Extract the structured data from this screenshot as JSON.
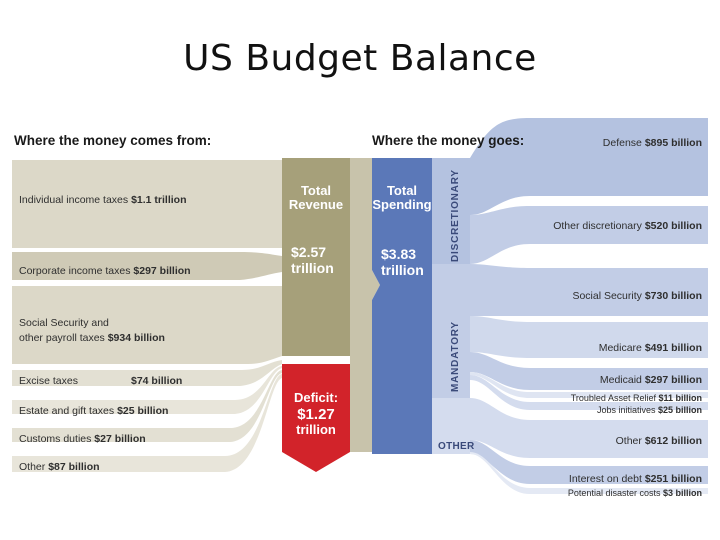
{
  "title": "US Budget Balance",
  "sources": {
    "heading": "Where the money comes from:",
    "items": [
      {
        "name": "Individual income taxes",
        "amount": "$1.1 trillion"
      },
      {
        "name": "Corporate income taxes",
        "amount": "$297 billion"
      },
      {
        "name": "Social Security and",
        "name2": "other payroll taxes",
        "amount": "$934 billion"
      },
      {
        "name": "Excise taxes",
        "amount": "$74 billion"
      },
      {
        "name": "Estate and gift taxes",
        "amount": "$25 billion"
      },
      {
        "name": "Customs duties",
        "amount": "$27 billion"
      },
      {
        "name": "Other",
        "amount": "$87 billion"
      }
    ]
  },
  "revenue": {
    "line1": "Total",
    "line2": "Revenue",
    "value1": "$2.57",
    "value2": "trillion"
  },
  "deficit": {
    "line1": "Deficit:",
    "value1": "$1.27",
    "value2": "trillion"
  },
  "spending": {
    "line1": "Total",
    "line2": "Spending",
    "value1": "$3.83",
    "value2": "trillion"
  },
  "uses": {
    "heading": "Where the money goes:",
    "groups": {
      "discretionary": "DISCRETIONARY",
      "mandatory": "MANDATORY",
      "other": "OTHER"
    },
    "items": [
      {
        "name": "Defense",
        "amount": "$895 billion"
      },
      {
        "name": "Other discretionary",
        "amount": "$520 billion"
      },
      {
        "name": "Social Security",
        "amount": "$730 billion"
      },
      {
        "name": "Medicare",
        "amount": "$491 billion"
      },
      {
        "name": "Medicaid",
        "amount": "$297 billion"
      },
      {
        "name": "Troubled Asset Relief",
        "amount": "$11 billion"
      },
      {
        "name": "Jobs initiatives",
        "amount": "$25 billion"
      },
      {
        "name": "Other",
        "amount": "$612 billion"
      },
      {
        "name": "Interest on debt",
        "amount": "$251 billion"
      },
      {
        "name": "Potential disaster costs",
        "amount": "$3 billion"
      }
    ]
  },
  "colors": {
    "source_band": "#dcd8c8",
    "source_band_dark": "#cfcab6",
    "revenue_box": "#a6a07a",
    "deficit_box": "#d2232a",
    "spending_box": "#5b78b8",
    "use_band": "#b4c2e0",
    "use_band_light": "#d4dcee"
  }
}
